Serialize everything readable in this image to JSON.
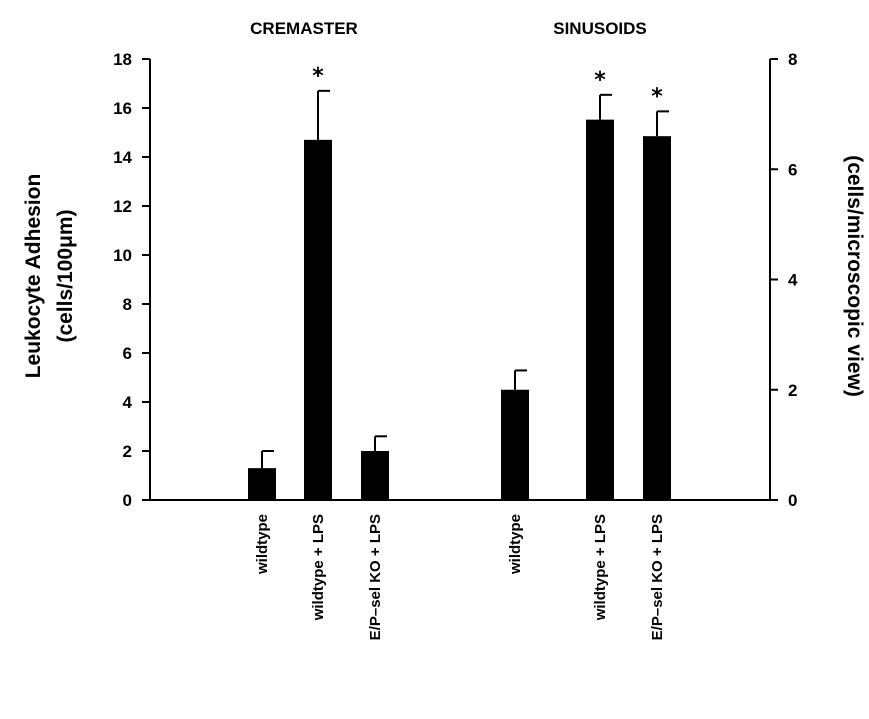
{
  "chart_data": {
    "type": "bar",
    "section_titles": [
      "CREMASTER",
      "SINUSOIDS"
    ],
    "y_left": {
      "title_line1": "Leukocyte Adhesion",
      "title_line2": "(cells/100μm)",
      "ylim": [
        0,
        18
      ],
      "ticks": [
        "0",
        "2",
        "4",
        "6",
        "8",
        "10",
        "12",
        "14",
        "16",
        "18"
      ]
    },
    "y_right": {
      "title": "(cells/microscopic view)",
      "ylim": [
        0,
        8
      ],
      "ticks": [
        "0",
        "2",
        "4",
        "6",
        "8"
      ]
    },
    "groups": [
      {
        "name": "CREMASTER",
        "axis": "left",
        "categories": [
          "wildtype",
          "wildtype + LPS",
          "E/P–sel KO + LPS"
        ],
        "values": [
          1.3,
          14.7,
          2.0
        ],
        "errors": [
          0.7,
          2.0,
          0.6
        ],
        "annotations": [
          "",
          "*",
          ""
        ]
      },
      {
        "name": "SINUSOIDS",
        "axis": "right",
        "categories": [
          "wildtype",
          "wildtype + LPS",
          "E/P–sel KO + LPS"
        ],
        "values": [
          2.0,
          6.9,
          6.6
        ],
        "errors": [
          0.35,
          0.45,
          0.45
        ],
        "annotations": [
          "",
          "*",
          "*"
        ]
      }
    ],
    "bar_color": "#000000",
    "grid": false
  }
}
